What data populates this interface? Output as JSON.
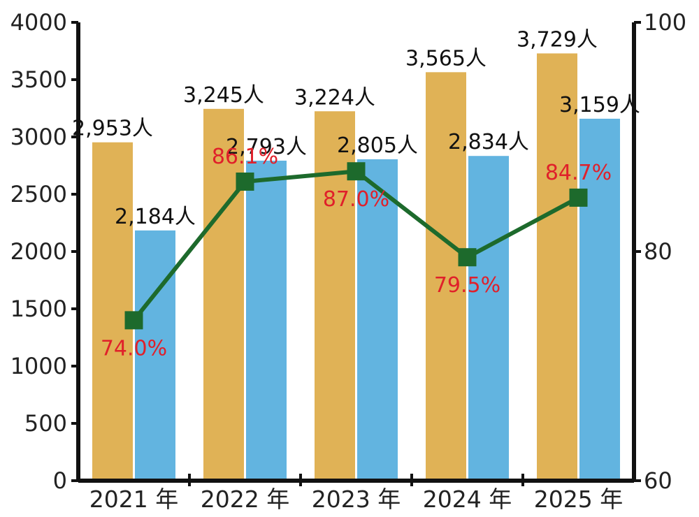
{
  "chart_data": {
    "type": "bar",
    "categories": [
      "2021 年",
      "2022 年",
      "2023 年",
      "2024 年",
      "2025 年"
    ],
    "series": [
      {
        "type": "bar",
        "axis": "left",
        "color": "#e0b256",
        "values": [
          2953,
          3245,
          3224,
          3565,
          3729
        ],
        "labels": [
          "2,953人",
          "3,245人",
          "3,224人",
          "3,565人",
          "3,729人"
        ]
      },
      {
        "type": "bar",
        "axis": "left",
        "color": "#62b4e0",
        "values": [
          2184,
          2793,
          2805,
          2834,
          3159
        ],
        "labels": [
          "2,184人",
          "2,793人",
          "2,805人",
          "2,834人",
          "3,159人"
        ]
      },
      {
        "type": "line",
        "axis": "right",
        "color": "#1d6a2c",
        "label_color": "#e0202a",
        "values": [
          74.0,
          86.1,
          87.0,
          79.5,
          84.7
        ],
        "labels": [
          "74.0%",
          "86.1%",
          "87.0%",
          "79.5%",
          "84.7%"
        ]
      }
    ],
    "y_left": {
      "min": 0,
      "max": 4000,
      "ticks": [
        "0",
        "500",
        "1000",
        "1500",
        "2000",
        "2500",
        "3000",
        "3500",
        "4000"
      ]
    },
    "y_right": {
      "min": 60,
      "max": 100,
      "ticks": [
        "60",
        "80",
        "100"
      ]
    },
    "title": "",
    "xlabel": "",
    "ylabel": "",
    "grid": false
  }
}
